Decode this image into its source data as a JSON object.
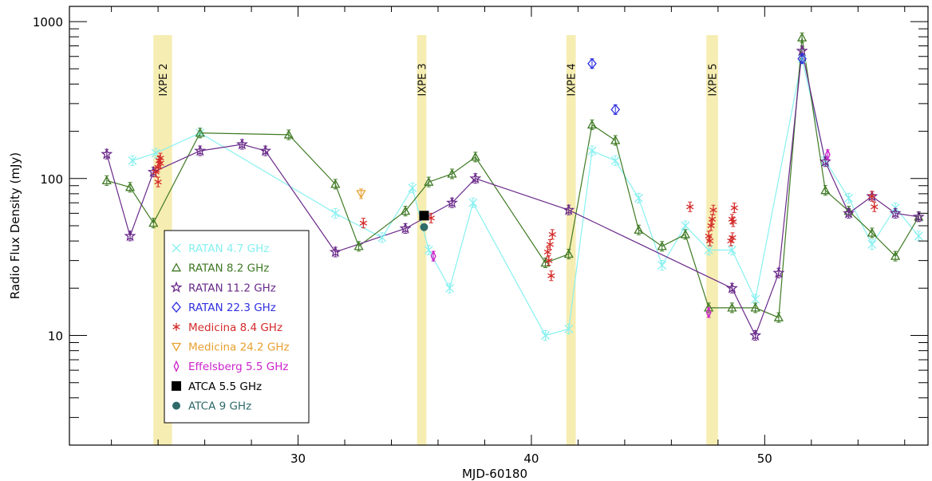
{
  "chart_data": {
    "type": "scatter",
    "xlabel": "MJD-60180",
    "ylabel": "Radio Flux Density (mJy)",
    "xlim": [
      20.2,
      57.0
    ],
    "ylim": [
      2,
      1250
    ],
    "yscale": "log",
    "x_ticks": [
      30,
      40,
      50
    ],
    "y_ticks": [
      10,
      100,
      1000
    ],
    "legend_position": "lower-left",
    "bands": [
      {
        "label": "IXPE 2",
        "x0": 23.8,
        "x1": 24.6
      },
      {
        "label": "IXPE 3",
        "x0": 35.1,
        "x1": 35.5
      },
      {
        "label": "IXPE 4",
        "x0": 41.5,
        "x1": 41.9
      },
      {
        "label": "IXPE 5",
        "x0": 47.5,
        "x1": 48.0
      }
    ],
    "series": [
      {
        "name": "RATAN 4.7 GHz",
        "marker": "x",
        "color": "#88f0f0",
        "line": true,
        "x": [
          22.9,
          23.9,
          25.8,
          31.6,
          33.6,
          34.9,
          35.6,
          36.5,
          37.5,
          40.6,
          41.6,
          42.6,
          43.6,
          44.6,
          45.6,
          46.6,
          47.6,
          48.6,
          49.6,
          51.6,
          52.6,
          53.6,
          54.6,
          55.6,
          56.6
        ],
        "y": [
          130,
          145,
          195,
          60,
          42,
          87,
          35,
          20,
          70,
          10,
          11,
          150,
          130,
          75,
          28,
          50,
          35,
          35,
          17,
          580,
          130,
          75,
          38,
          65,
          43
        ]
      },
      {
        "name": "RATAN 8.2 GHz",
        "marker": "triangle",
        "color": "#3f7a24",
        "line": true,
        "x": [
          21.8,
          22.8,
          23.8,
          25.8,
          29.6,
          31.6,
          32.6,
          34.6,
          35.6,
          36.6,
          37.6,
          40.6,
          41.6,
          42.6,
          43.6,
          44.6,
          45.6,
          46.6,
          47.6,
          48.6,
          49.6,
          50.6,
          51.6,
          52.6,
          53.6,
          54.6,
          55.6,
          56.6
        ],
        "y": [
          97,
          88,
          52,
          195,
          190,
          92,
          37,
          62,
          95,
          107,
          137,
          29,
          33,
          220,
          175,
          47,
          37,
          44,
          15,
          15,
          15,
          13,
          790,
          84,
          62,
          45,
          32,
          57
        ]
      },
      {
        "name": "RATAN 11.2 GHz",
        "marker": "star",
        "color": "#6a2a8a",
        "line": true,
        "x": [
          21.8,
          22.8,
          23.8,
          25.8,
          27.6,
          28.6,
          31.6,
          34.6,
          36.6,
          37.6,
          41.6,
          48.6,
          49.6,
          50.6,
          51.6,
          52.6,
          53.6,
          54.6,
          55.6,
          56.6
        ],
        "y": [
          143,
          43,
          110,
          150,
          165,
          150,
          34,
          48,
          70,
          100,
          63,
          20,
          10,
          25,
          650,
          128,
          60,
          77,
          60,
          57
        ]
      },
      {
        "name": "RATAN 22.3 GHz",
        "marker": "diamond",
        "color": "#3030e0",
        "line": false,
        "x": [
          42.6,
          43.6,
          51.6
        ],
        "y": [
          540,
          275,
          580
        ]
      },
      {
        "name": "Medicina 8.4 GHz",
        "marker": "asterisk",
        "color": "#d42a2a",
        "line": false,
        "x": [
          23.9,
          24.0,
          24.1,
          24.0,
          24.1,
          24.05,
          32.8,
          35.7,
          40.7,
          40.8,
          40.9,
          40.75,
          40.85,
          46.8,
          47.6,
          47.7,
          47.75,
          47.65,
          47.8,
          48.6,
          48.65,
          48.7,
          48.55,
          48.62,
          54.6,
          54.7
        ],
        "y": [
          110,
          118,
          125,
          95,
          135,
          130,
          52,
          56,
          34,
          38,
          44,
          30,
          24,
          66,
          43,
          50,
          55,
          40,
          63,
          55,
          53,
          65,
          40,
          42,
          77,
          66
        ]
      },
      {
        "name": "Medicina 24.2 GHz",
        "marker": "triangle-down",
        "color": "#e8a030",
        "line": false,
        "x": [
          32.7
        ],
        "y": [
          80
        ]
      },
      {
        "name": "Effelsberg 5.5 GHz",
        "marker": "thin-diamond",
        "color": "#cc22cc",
        "line": false,
        "x": [
          35.8,
          47.6,
          52.7
        ],
        "y": [
          32,
          14,
          142
        ]
      },
      {
        "name": "ATCA 5.5 GHz",
        "marker": "square",
        "color": "#000000",
        "line": false,
        "x": [
          35.4
        ],
        "y": [
          58
        ]
      },
      {
        "name": "ATCA 9 GHz",
        "marker": "circle",
        "color": "#2f6a6a",
        "line": false,
        "x": [
          35.4
        ],
        "y": [
          49
        ]
      }
    ]
  }
}
